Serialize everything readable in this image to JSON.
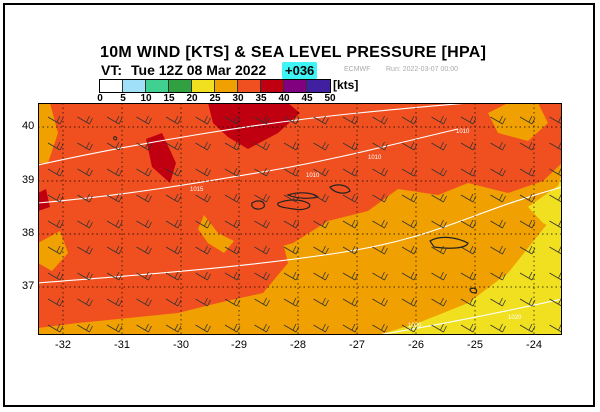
{
  "header": {
    "title": "10M WIND [KTS] & SEA LEVEL PRESSURE [HPA]",
    "vt_label": "VT:",
    "valid_time": "Tue 12Z 08 Mar 2022",
    "forecast_step": "+036",
    "source": "ECMWF",
    "run": "Run: 2022-03-07 00:00"
  },
  "colorbar": {
    "unit": "[kts]",
    "ticks": [
      "0",
      "5",
      "10",
      "15",
      "20",
      "25",
      "30",
      "35",
      "40",
      "45",
      "50"
    ],
    "colors": [
      "#ffffff",
      "#a0e0f8",
      "#40d090",
      "#30a040",
      "#f0e020",
      "#f0a000",
      "#f05020",
      "#c00010",
      "#800080",
      "#4020a0",
      "#2020d0"
    ]
  },
  "map": {
    "lon_labels": [
      "-32",
      "-31",
      "-30",
      "-29",
      "-28",
      "-27",
      "-26",
      "-25",
      "-24"
    ],
    "lat_labels": [
      "40",
      "39",
      "38",
      "37"
    ],
    "isobar_labels": [
      "1010",
      "1010",
      "1010",
      "1015",
      "1020",
      "1020"
    ],
    "grid_lines": "dotted",
    "islands": "Azores"
  }
}
